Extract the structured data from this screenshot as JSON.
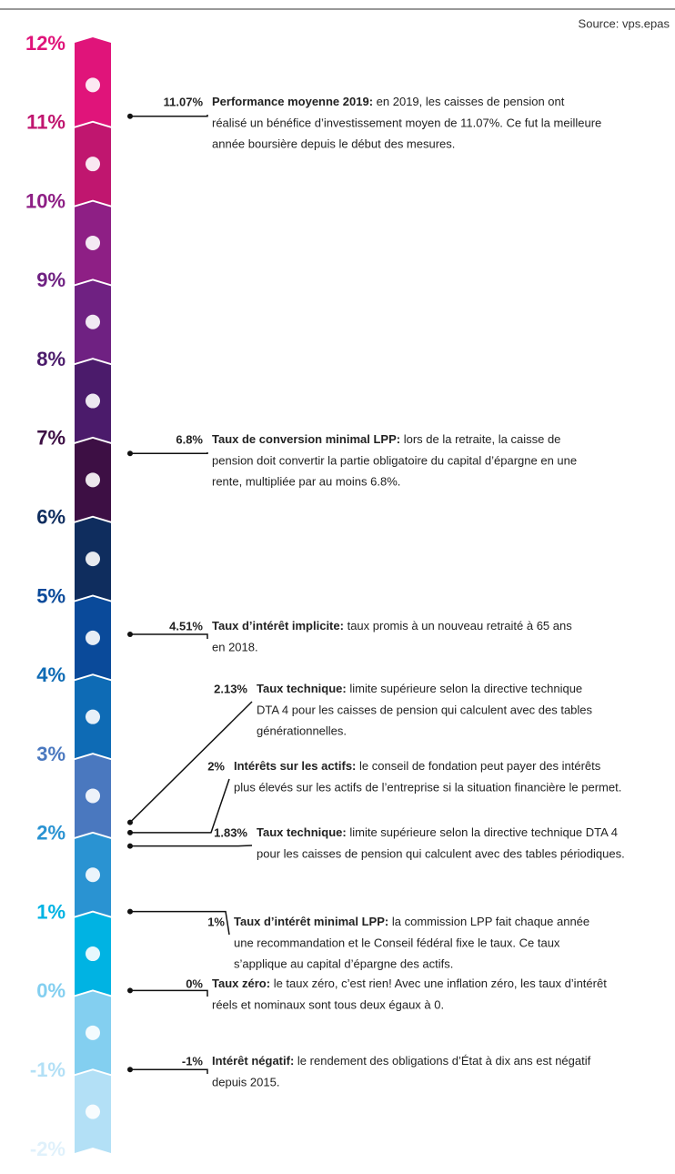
{
  "chart_data": {
    "type": "scale",
    "source": "Source: vps.epas",
    "ylim": [
      -2,
      12
    ],
    "yticks": [
      {
        "value": 12,
        "label": "12%"
      },
      {
        "value": 11,
        "label": "11%"
      },
      {
        "value": 10,
        "label": "10%"
      },
      {
        "value": 9,
        "label": "9%"
      },
      {
        "value": 8,
        "label": "8%"
      },
      {
        "value": 7,
        "label": "7%"
      },
      {
        "value": 6,
        "label": "6%"
      },
      {
        "value": 5,
        "label": "5%"
      },
      {
        "value": 4,
        "label": "4%"
      },
      {
        "value": 3,
        "label": "3%"
      },
      {
        "value": 2,
        "label": "2%"
      },
      {
        "value": 1,
        "label": "1%"
      },
      {
        "value": 0,
        "label": "0%"
      },
      {
        "value": -1,
        "label": "-1%"
      },
      {
        "value": -2,
        "label": "-2%"
      }
    ],
    "colors": [
      "#e0147a",
      "#c0166f",
      "#8e1f85",
      "#6f2182",
      "#4b1b6b",
      "#3d0f44",
      "#0f2d5e",
      "#0a4a9a",
      "#0e6bb5",
      "#4a78bf",
      "#2a93d2",
      "#00b3e3",
      "#83cff0",
      "#b3e0f6",
      "#e0f1fb"
    ],
    "annotations": [
      {
        "value": 11.07,
        "value_label": "11.07%",
        "title": "Performance moyenne 2019:",
        "lines": [
          "en 2019, les caisses de pension ont",
          "réalisé un bénéfice d’investissement moyen de 11.07%. Ce fut la meilleure",
          "année boursière depuis le début des mesures."
        ]
      },
      {
        "value": 6.8,
        "value_label": "6.8%",
        "title": "Taux de conversion minimal LPP:",
        "lines": [
          "lors de la retraite, la caisse de",
          "pension doit convertir la partie obligatoire du capital d’épargne en une",
          "rente, multipliée par au moins 6.8%."
        ]
      },
      {
        "value": 4.51,
        "value_label": "4.51%",
        "title": "Taux d’intérêt implicite:",
        "lines": [
          "taux promis à un nouveau retraité à 65 ans",
          "en 2018."
        ]
      },
      {
        "value": 2.13,
        "value_label": "2.13%",
        "title": "Taux technique:",
        "lines": [
          "limite supérieure selon la directive technique",
          "DTA 4 pour les caisses de pension qui calculent avec des tables",
          "générationnelles."
        ]
      },
      {
        "value": 2,
        "value_label": "2%",
        "title": "Intérêts sur les actifs:",
        "lines": [
          "le conseil de fondation peut payer des intérêts",
          "plus élevés sur les actifs de l’entreprise si la situation financière le permet."
        ]
      },
      {
        "value": 1.83,
        "value_label": "1.83%",
        "title": "Taux technique:",
        "lines": [
          "limite supérieure selon la directive technique DTA 4",
          "pour les caisses de pension qui calculent avec des tables périodiques."
        ]
      },
      {
        "value": 1,
        "value_label": "1%",
        "title": "Taux d’intérêt minimal LPP:",
        "lines": [
          "la commission LPP fait chaque année",
          "une recommandation et le Conseil fédéral fixe le taux. Ce taux",
          "s’applique au capital d’épargne des actifs."
        ]
      },
      {
        "value": 0,
        "value_label": "0%",
        "title": "Taux zéro:",
        "lines": [
          "le taux zéro, c’est rien! Avec une inflation zéro, les taux d’intérêt",
          "réels et nominaux sont tous deux égaux à 0."
        ]
      },
      {
        "value": -1,
        "value_label": "-1%",
        "title": "Intérêt négatif:",
        "lines": [
          "le rendement des obligations d’État à dix ans est négatif",
          "depuis 2015."
        ]
      }
    ]
  }
}
